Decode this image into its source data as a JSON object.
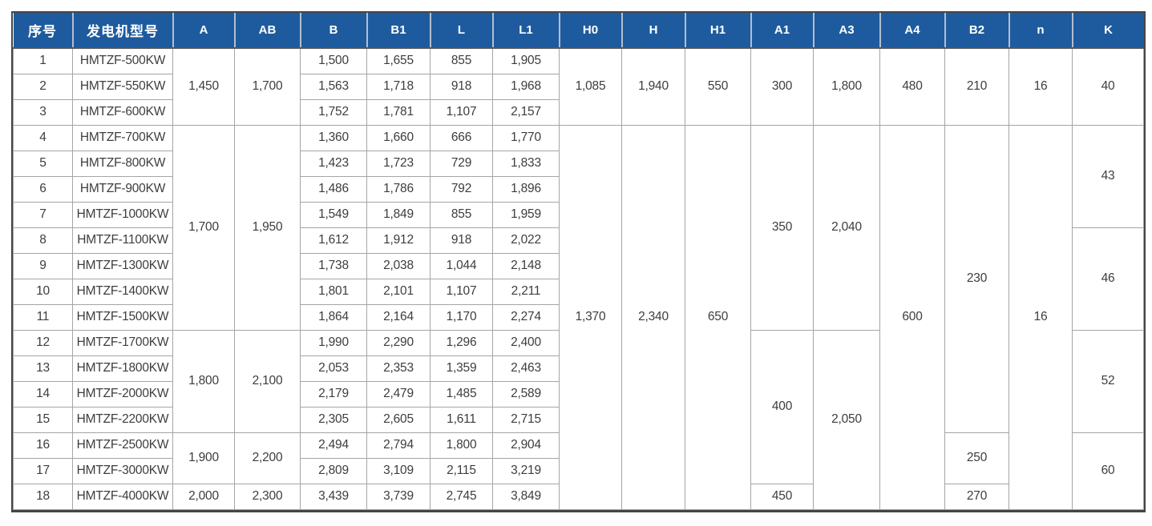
{
  "colors": {
    "header_bg": "#1e5b9e",
    "header_text": "#ffffff",
    "header_sep": "#b2bfd0",
    "grid_line": "#a5a5a5",
    "outer_border": "#454545",
    "body_text": "#3d3d3d"
  },
  "chart_data": {
    "type": "table",
    "columns": [
      {
        "key": "index",
        "label": "序号"
      },
      {
        "key": "model",
        "label": "发电机型号"
      },
      {
        "key": "A",
        "label": "A"
      },
      {
        "key": "AB",
        "label": "AB"
      },
      {
        "key": "B",
        "label": "B"
      },
      {
        "key": "B1",
        "label": "B1"
      },
      {
        "key": "L",
        "label": "L"
      },
      {
        "key": "L1",
        "label": "L1"
      },
      {
        "key": "H0",
        "label": "H0"
      },
      {
        "key": "H",
        "label": "H"
      },
      {
        "key": "H1",
        "label": "H1"
      },
      {
        "key": "A1",
        "label": "A1"
      },
      {
        "key": "A3",
        "label": "A3"
      },
      {
        "key": "A4",
        "label": "A4"
      },
      {
        "key": "B2",
        "label": "B2"
      },
      {
        "key": "n",
        "label": "n"
      },
      {
        "key": "K",
        "label": "K"
      }
    ],
    "rows": [
      {
        "cells": [
          {
            "c": "index",
            "v": "1"
          },
          {
            "c": "model",
            "v": "HMTZF-500KW"
          },
          {
            "c": "A",
            "v": "1,450",
            "rs": 3
          },
          {
            "c": "AB",
            "v": "1,700",
            "rs": 3
          },
          {
            "c": "B",
            "v": "1,500"
          },
          {
            "c": "B1",
            "v": "1,655"
          },
          {
            "c": "L",
            "v": "855"
          },
          {
            "c": "L1",
            "v": "1,905"
          },
          {
            "c": "H0",
            "v": "1,085",
            "rs": 3
          },
          {
            "c": "H",
            "v": "1,940",
            "rs": 3
          },
          {
            "c": "H1",
            "v": "550",
            "rs": 3
          },
          {
            "c": "A1",
            "v": "300",
            "rs": 3
          },
          {
            "c": "A3",
            "v": "1,800",
            "rs": 3
          },
          {
            "c": "A4",
            "v": "480",
            "rs": 3
          },
          {
            "c": "B2",
            "v": "210",
            "rs": 3
          },
          {
            "c": "n",
            "v": "16",
            "rs": 3
          },
          {
            "c": "K",
            "v": "40",
            "rs": 3
          }
        ]
      },
      {
        "cells": [
          {
            "c": "index",
            "v": "2"
          },
          {
            "c": "model",
            "v": "HMTZF-550KW"
          },
          {
            "c": "B",
            "v": "1,563"
          },
          {
            "c": "B1",
            "v": "1,718"
          },
          {
            "c": "L",
            "v": "918"
          },
          {
            "c": "L1",
            "v": "1,968"
          }
        ]
      },
      {
        "cells": [
          {
            "c": "index",
            "v": "3"
          },
          {
            "c": "model",
            "v": "HMTZF-600KW"
          },
          {
            "c": "B",
            "v": "1,752"
          },
          {
            "c": "B1",
            "v": "1,781"
          },
          {
            "c": "L",
            "v": "1,107"
          },
          {
            "c": "L1",
            "v": "2,157"
          }
        ]
      },
      {
        "cells": [
          {
            "c": "index",
            "v": "4"
          },
          {
            "c": "model",
            "v": "HMTZF-700KW"
          },
          {
            "c": "A",
            "v": "1,700",
            "rs": 8
          },
          {
            "c": "AB",
            "v": "1,950",
            "rs": 8
          },
          {
            "c": "B",
            "v": "1,360"
          },
          {
            "c": "B1",
            "v": "1,660"
          },
          {
            "c": "L",
            "v": "666"
          },
          {
            "c": "L1",
            "v": "1,770"
          },
          {
            "c": "H0",
            "v": "1,370",
            "rs": 15
          },
          {
            "c": "H",
            "v": "2,340",
            "rs": 15
          },
          {
            "c": "H1",
            "v": "650",
            "rs": 15
          },
          {
            "c": "A1",
            "v": "350",
            "rs": 8
          },
          {
            "c": "A3",
            "v": "2,040",
            "rs": 8
          },
          {
            "c": "A4",
            "v": "600",
            "rs": 15
          },
          {
            "c": "B2",
            "v": "230",
            "rs": 12
          },
          {
            "c": "n",
            "v": "16",
            "rs": 15
          },
          {
            "c": "K",
            "v": "43",
            "rs": 4
          }
        ]
      },
      {
        "cells": [
          {
            "c": "index",
            "v": "5"
          },
          {
            "c": "model",
            "v": "HMTZF-800KW"
          },
          {
            "c": "B",
            "v": "1,423"
          },
          {
            "c": "B1",
            "v": "1,723"
          },
          {
            "c": "L",
            "v": "729"
          },
          {
            "c": "L1",
            "v": "1,833"
          }
        ]
      },
      {
        "cells": [
          {
            "c": "index",
            "v": "6"
          },
          {
            "c": "model",
            "v": "HMTZF-900KW"
          },
          {
            "c": "B",
            "v": "1,486"
          },
          {
            "c": "B1",
            "v": "1,786"
          },
          {
            "c": "L",
            "v": "792"
          },
          {
            "c": "L1",
            "v": "1,896"
          }
        ]
      },
      {
        "cells": [
          {
            "c": "index",
            "v": "7"
          },
          {
            "c": "model",
            "v": "HMTZF-1000KW"
          },
          {
            "c": "B",
            "v": "1,549"
          },
          {
            "c": "B1",
            "v": "1,849"
          },
          {
            "c": "L",
            "v": "855"
          },
          {
            "c": "L1",
            "v": "1,959"
          }
        ]
      },
      {
        "cells": [
          {
            "c": "index",
            "v": "8"
          },
          {
            "c": "model",
            "v": "HMTZF-1100KW"
          },
          {
            "c": "B",
            "v": "1,612"
          },
          {
            "c": "B1",
            "v": "1,912"
          },
          {
            "c": "L",
            "v": "918"
          },
          {
            "c": "L1",
            "v": "2,022"
          },
          {
            "c": "K",
            "v": "46",
            "rs": 4
          }
        ]
      },
      {
        "cells": [
          {
            "c": "index",
            "v": "9"
          },
          {
            "c": "model",
            "v": "HMTZF-1300KW"
          },
          {
            "c": "B",
            "v": "1,738"
          },
          {
            "c": "B1",
            "v": "2,038"
          },
          {
            "c": "L",
            "v": "1,044"
          },
          {
            "c": "L1",
            "v": "2,148"
          }
        ]
      },
      {
        "cells": [
          {
            "c": "index",
            "v": "10"
          },
          {
            "c": "model",
            "v": "HMTZF-1400KW"
          },
          {
            "c": "B",
            "v": "1,801"
          },
          {
            "c": "B1",
            "v": "2,101"
          },
          {
            "c": "L",
            "v": "1,107"
          },
          {
            "c": "L1",
            "v": "2,211"
          }
        ]
      },
      {
        "cells": [
          {
            "c": "index",
            "v": "11"
          },
          {
            "c": "model",
            "v": "HMTZF-1500KW"
          },
          {
            "c": "B",
            "v": "1,864"
          },
          {
            "c": "B1",
            "v": "2,164"
          },
          {
            "c": "L",
            "v": "1,170"
          },
          {
            "c": "L1",
            "v": "2,274"
          }
        ]
      },
      {
        "cells": [
          {
            "c": "index",
            "v": "12"
          },
          {
            "c": "model",
            "v": "HMTZF-1700KW"
          },
          {
            "c": "A",
            "v": "1,800",
            "rs": 4
          },
          {
            "c": "AB",
            "v": "2,100",
            "rs": 4
          },
          {
            "c": "B",
            "v": "1,990"
          },
          {
            "c": "B1",
            "v": "2,290"
          },
          {
            "c": "L",
            "v": "1,296"
          },
          {
            "c": "L1",
            "v": "2,400"
          },
          {
            "c": "A1",
            "v": "400",
            "rs": 6
          },
          {
            "c": "A3",
            "v": "2,050",
            "rs": 7
          },
          {
            "c": "K",
            "v": "52",
            "rs": 4
          }
        ]
      },
      {
        "cells": [
          {
            "c": "index",
            "v": "13"
          },
          {
            "c": "model",
            "v": "HMTZF-1800KW"
          },
          {
            "c": "B",
            "v": "2,053"
          },
          {
            "c": "B1",
            "v": "2,353"
          },
          {
            "c": "L",
            "v": "1,359"
          },
          {
            "c": "L1",
            "v": "2,463"
          }
        ]
      },
      {
        "cells": [
          {
            "c": "index",
            "v": "14"
          },
          {
            "c": "model",
            "v": "HMTZF-2000KW"
          },
          {
            "c": "B",
            "v": "2,179"
          },
          {
            "c": "B1",
            "v": "2,479"
          },
          {
            "c": "L",
            "v": "1,485"
          },
          {
            "c": "L1",
            "v": "2,589"
          }
        ]
      },
      {
        "cells": [
          {
            "c": "index",
            "v": "15"
          },
          {
            "c": "model",
            "v": "HMTZF-2200KW"
          },
          {
            "c": "B",
            "v": "2,305"
          },
          {
            "c": "B1",
            "v": "2,605"
          },
          {
            "c": "L",
            "v": "1,611"
          },
          {
            "c": "L1",
            "v": "2,715"
          }
        ]
      },
      {
        "cells": [
          {
            "c": "index",
            "v": "16"
          },
          {
            "c": "model",
            "v": "HMTZF-2500KW"
          },
          {
            "c": "A",
            "v": "1,900",
            "rs": 2
          },
          {
            "c": "AB",
            "v": "2,200",
            "rs": 2
          },
          {
            "c": "B",
            "v": "2,494"
          },
          {
            "c": "B1",
            "v": "2,794"
          },
          {
            "c": "L",
            "v": "1,800"
          },
          {
            "c": "L1",
            "v": "2,904"
          },
          {
            "c": "B2",
            "v": "250",
            "rs": 2
          },
          {
            "c": "K",
            "v": "60",
            "rs": 3
          }
        ]
      },
      {
        "cells": [
          {
            "c": "index",
            "v": "17"
          },
          {
            "c": "model",
            "v": "HMTZF-3000KW"
          },
          {
            "c": "B",
            "v": "2,809"
          },
          {
            "c": "B1",
            "v": "3,109"
          },
          {
            "c": "L",
            "v": "2,115"
          },
          {
            "c": "L1",
            "v": "3,219"
          }
        ]
      },
      {
        "cells": [
          {
            "c": "index",
            "v": "18"
          },
          {
            "c": "model",
            "v": "HMTZF-4000KW"
          },
          {
            "c": "A",
            "v": "2,000"
          },
          {
            "c": "AB",
            "v": "2,300"
          },
          {
            "c": "B",
            "v": "3,439"
          },
          {
            "c": "B1",
            "v": "3,739"
          },
          {
            "c": "L",
            "v": "2,745"
          },
          {
            "c": "L1",
            "v": "3,849"
          },
          {
            "c": "A1",
            "v": "450"
          },
          {
            "c": "B2",
            "v": "270"
          }
        ]
      }
    ]
  }
}
